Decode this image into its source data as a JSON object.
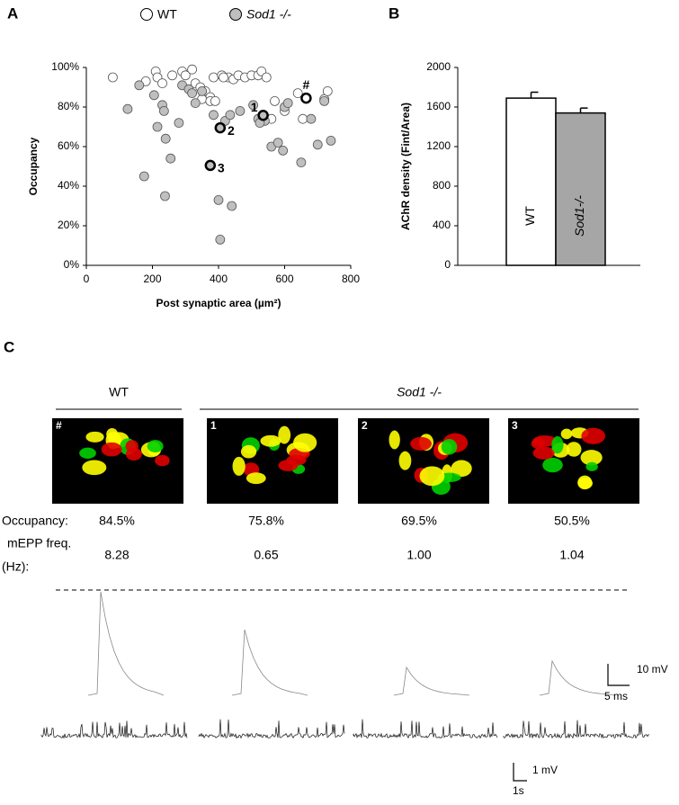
{
  "panels": [
    "A",
    "B",
    "C"
  ],
  "chart_data": [
    {
      "type": "scatter",
      "x_label": "Post synaptic area (µm²)",
      "y_label": "Occupancy",
      "xlim": [
        0,
        800
      ],
      "xticks": [
        0,
        200,
        400,
        600,
        800
      ],
      "ylim": [
        0,
        100
      ],
      "yticks": [
        {
          "value": 0,
          "label": "0%"
        },
        {
          "value": 20,
          "label": "20%"
        },
        {
          "value": 40,
          "label": "40%"
        },
        {
          "value": 60,
          "label": "60%"
        },
        {
          "value": 80,
          "label": "80%"
        },
        {
          "value": 100,
          "label": "100%"
        }
      ],
      "series": [
        {
          "name": "WT",
          "color": "#ffffff",
          "x": [
            80,
            210,
            215,
            260,
            290,
            300,
            320,
            330,
            345,
            360,
            375,
            385,
            410,
            430,
            445,
            460,
            480,
            500,
            520,
            530,
            545,
            560,
            570,
            600,
            640,
            655,
            720,
            730,
            350,
            375,
            230,
            180,
            390,
            415
          ],
          "values": [
            95,
            98,
            95,
            96,
            98,
            96,
            99,
            92,
            90,
            88,
            85,
            95,
            96,
            95,
            94,
            96,
            95,
            96,
            96,
            98,
            95,
            74,
            83,
            78,
            87,
            74,
            84,
            88,
            84,
            83,
            92,
            93,
            83,
            95
          ]
        },
        {
          "name": "Sod1 -/-",
          "color": "#bfbfbf",
          "x": [
            125,
            160,
            175,
            205,
            215,
            230,
            235,
            238,
            240,
            255,
            280,
            290,
            310,
            320,
            330,
            350,
            385,
            400,
            405,
            420,
            435,
            440,
            465,
            520,
            540,
            560,
            580,
            595,
            600,
            610,
            650,
            680,
            700,
            720,
            740,
            505,
            525
          ],
          "values": [
            79,
            91,
            45,
            86,
            70,
            81,
            78,
            35,
            64,
            54,
            72,
            91,
            89,
            87,
            82,
            88,
            76,
            33,
            13,
            73,
            76,
            30,
            78,
            74,
            73,
            60,
            62,
            58,
            80,
            82,
            52,
            74,
            61,
            83,
            63,
            81,
            72
          ]
        }
      ],
      "highlights": [
        {
          "label": "#",
          "x": 665,
          "y": 84.5,
          "color": "#ffffff"
        },
        {
          "label": "1",
          "x": 535,
          "y": 75.8,
          "color": "#bfbfbf"
        },
        {
          "label": "2",
          "x": 405,
          "y": 69.5,
          "color": "#bfbfbf"
        },
        {
          "label": "3",
          "x": 375,
          "y": 50.5,
          "color": "#bfbfbf"
        }
      ]
    },
    {
      "type": "bar",
      "y_label": "AChR density (Fint/Area)",
      "categories": [
        "WT",
        "Sod1-/-"
      ],
      "values": [
        1690,
        1540
      ],
      "errors": [
        60,
        50
      ],
      "colors": [
        "#ffffff",
        "#a6a6a6"
      ],
      "ylim": [
        0,
        2000
      ],
      "yticks": [
        0,
        400,
        800,
        1200,
        1600,
        2000
      ]
    }
  ],
  "panel_c": {
    "groups": [
      "WT",
      "Sod1 -/-"
    ],
    "images": [
      "#",
      "1",
      "2",
      "3"
    ],
    "occupancy_label": "Occupancy:",
    "occupancy": [
      "84.5%",
      "75.8%",
      "69.5%",
      "50.5%"
    ],
    "freq_label": [
      "mEPP freq.",
      "(Hz):"
    ],
    "freq": [
      "8.28",
      "0.65",
      "1.00",
      "1.04"
    ],
    "scale_top": [
      "10 mV",
      "5 ms"
    ],
    "scale_bottom": [
      "1 mV",
      "1s"
    ]
  }
}
